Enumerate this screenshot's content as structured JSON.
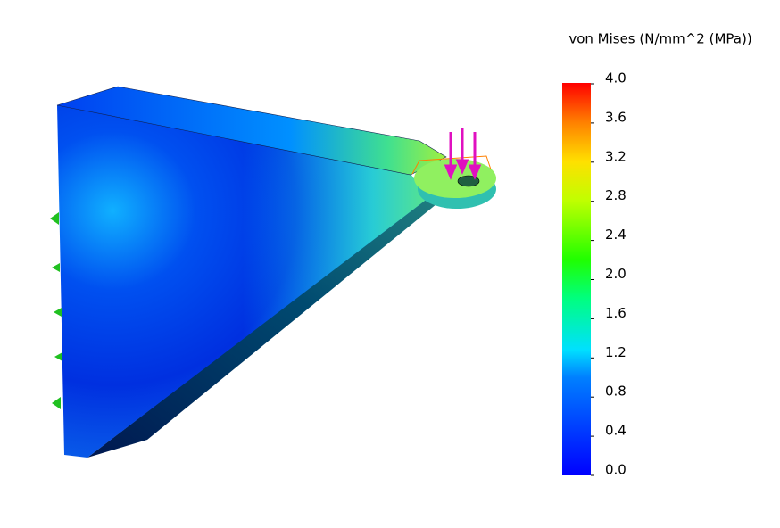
{
  "legend": {
    "title": "von Mises (N/mm^2 (MPa))",
    "lim": [
      0,
      4
    ],
    "ticks": [
      {
        "value": 4,
        "label": "4.0"
      },
      {
        "value": 3.6,
        "label": "3.6"
      },
      {
        "value": 3.2,
        "label": "3.2"
      },
      {
        "value": 2.8,
        "label": "2.8"
      },
      {
        "value": 2.4,
        "label": "2.4"
      },
      {
        "value": 2,
        "label": "2.0"
      },
      {
        "value": 1.6,
        "label": "1.6"
      },
      {
        "value": 1.2,
        "label": "1.2"
      },
      {
        "value": 0.8,
        "label": "0.8"
      },
      {
        "value": 0.4,
        "label": "0.4"
      },
      {
        "value": 0,
        "label": "0.0"
      }
    ]
  }
}
